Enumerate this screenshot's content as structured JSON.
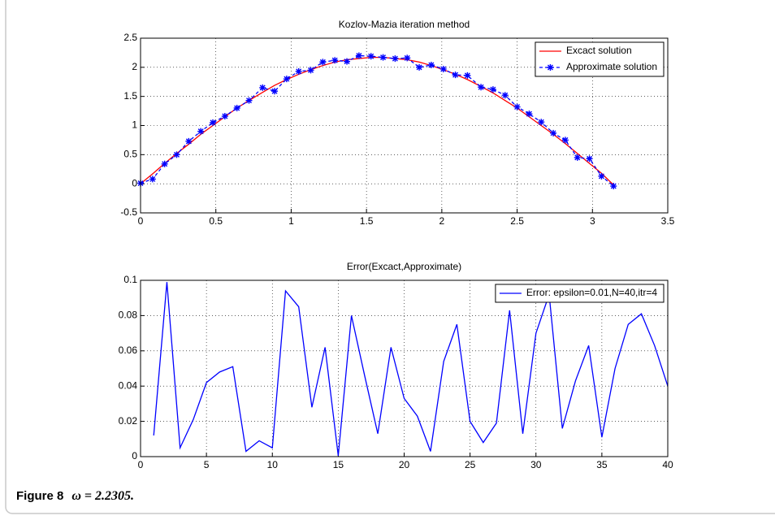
{
  "chart_data": [
    {
      "type": "line",
      "title": "Kozlov-Mazia iteration method",
      "x": [
        0,
        0.08,
        0.16,
        0.24,
        0.32,
        0.4,
        0.48,
        0.56,
        0.64,
        0.72,
        0.81,
        0.89,
        0.97,
        1.05,
        1.13,
        1.21,
        1.29,
        1.37,
        1.45,
        1.53,
        1.61,
        1.69,
        1.77,
        1.85,
        1.93,
        2.01,
        2.09,
        2.17,
        2.26,
        2.34,
        2.42,
        2.5,
        2.58,
        2.66,
        2.74,
        2.82,
        2.9,
        2.98,
        3.06,
        3.14
      ],
      "series": [
        {
          "name": "Excact solution",
          "color": "#ff0000",
          "linestyle": "solid",
          "values": [
            0,
            0.17,
            0.35,
            0.52,
            0.68,
            0.85,
            1.0,
            1.15,
            1.3,
            1.43,
            1.57,
            1.69,
            1.79,
            1.88,
            1.96,
            2.03,
            2.09,
            2.13,
            2.15,
            2.17,
            2.17,
            2.15,
            2.13,
            2.09,
            2.03,
            1.96,
            1.88,
            1.79,
            1.67,
            1.56,
            1.43,
            1.3,
            1.15,
            1.0,
            0.85,
            0.69,
            0.52,
            0.35,
            0.18,
            -0.02
          ]
        },
        {
          "name": "Approximate solution",
          "color": "#0000ff",
          "linestyle": "dashed",
          "marker": "*",
          "values": [
            0.01,
            0.08,
            0.34,
            0.5,
            0.73,
            0.9,
            1.05,
            1.16,
            1.3,
            1.43,
            1.65,
            1.59,
            1.8,
            1.93,
            1.95,
            2.09,
            2.12,
            2.1,
            2.2,
            2.19,
            2.17,
            2.15,
            2.16,
            2.0,
            2.04,
            1.97,
            1.87,
            1.86,
            1.66,
            1.62,
            1.52,
            1.32,
            1.2,
            1.06,
            0.87,
            0.75,
            0.45,
            0.43,
            0.13,
            -0.04
          ]
        }
      ],
      "xlim": [
        0,
        3.5
      ],
      "xticks": [
        0,
        0.5,
        1,
        1.5,
        2,
        2.5,
        3,
        3.5
      ],
      "ylim": [
        -0.5,
        2.5
      ],
      "yticks": [
        -0.5,
        0,
        0.5,
        1,
        1.5,
        2,
        2.5
      ],
      "grid": true,
      "legend": "upper right"
    },
    {
      "type": "line",
      "title": "Error(Excact,Approximate)",
      "x": [
        1,
        2,
        3,
        4,
        5,
        6,
        7,
        8,
        9,
        10,
        11,
        12,
        13,
        14,
        15,
        16,
        17,
        18,
        19,
        20,
        21,
        22,
        23,
        24,
        25,
        26,
        27,
        28,
        29,
        30,
        31,
        32,
        33,
        34,
        35,
        36,
        37,
        38,
        39,
        40
      ],
      "series": [
        {
          "name": "Error: epsilon=0.01,N=40,itr=4",
          "color": "#0000ff",
          "linestyle": "solid",
          "values": [
            0.012,
            0.099,
            0.005,
            0.021,
            0.042,
            0.048,
            0.051,
            0.003,
            0.009,
            0.005,
            0.094,
            0.085,
            0.028,
            0.062,
            0.0005,
            0.08,
            0.046,
            0.013,
            0.062,
            0.033,
            0.023,
            0.003,
            0.054,
            0.075,
            0.02,
            0.008,
            0.019,
            0.083,
            0.013,
            0.07,
            0.092,
            0.016,
            0.043,
            0.063,
            0.011,
            0.05,
            0.075,
            0.081,
            0.063,
            0.04
          ]
        }
      ],
      "xlim": [
        0,
        40
      ],
      "xticks": [
        0,
        5,
        10,
        15,
        20,
        25,
        30,
        35,
        40
      ],
      "ylim": [
        0,
        0.1
      ],
      "yticks": [
        0,
        0.02,
        0.04,
        0.06,
        0.08,
        0.1
      ],
      "grid": true,
      "legend": "upper right"
    }
  ],
  "caption": {
    "label": "Figure 8",
    "text": "ω = 2.2305."
  }
}
